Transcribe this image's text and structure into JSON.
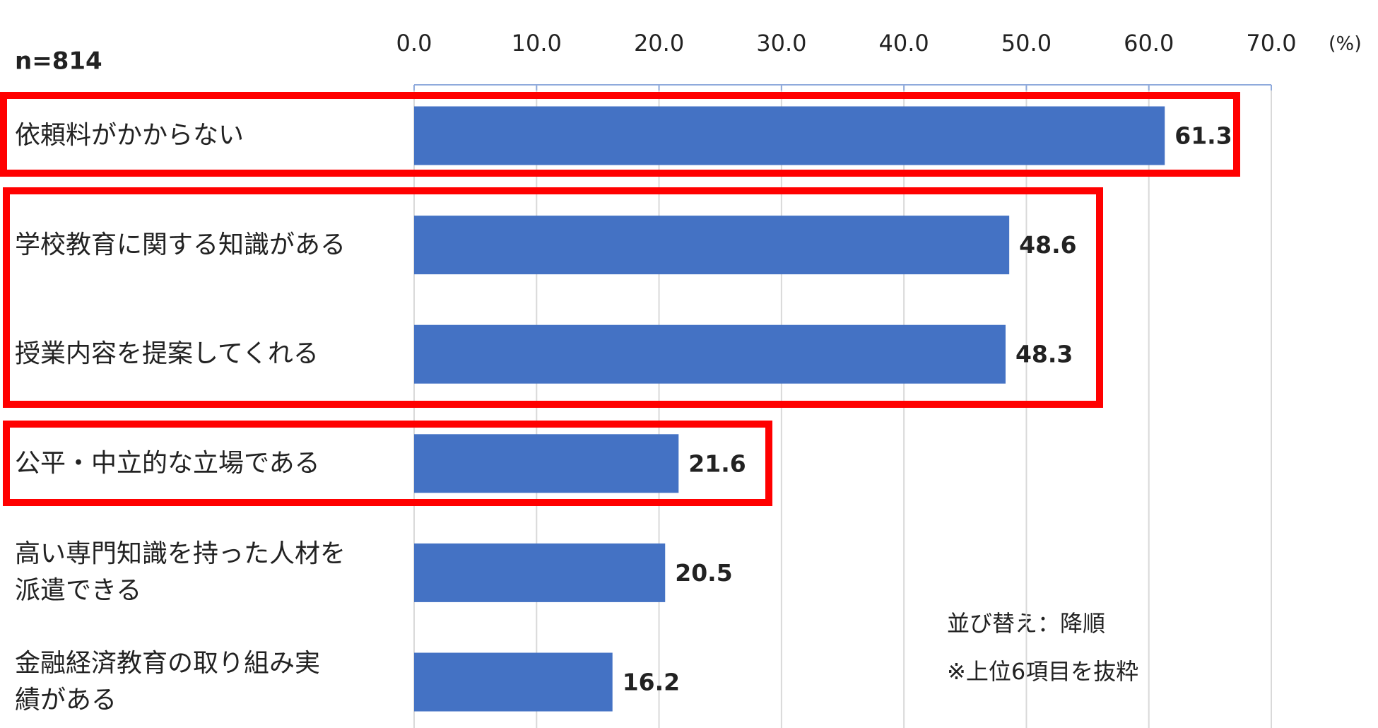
{
  "chart_data": {
    "type": "bar",
    "orientation": "horizontal",
    "sample_size": "n=814",
    "unit": "(%)",
    "notes": [
      "並び替え：降順",
      "※上位6項目を抜粋"
    ],
    "categories": [
      "依頼料がかからない",
      "学校教育に関する知識がある",
      "授業内容を提案してくれる",
      "公平・中立的な立場である",
      "高い専門知識を持った人材を\n派遣できる",
      "金融経済教育の取り組み実\n績がある"
    ],
    "values": [
      61.3,
      48.6,
      48.3,
      21.6,
      20.5,
      16.2
    ],
    "color": "#4472c4",
    "xlim": [
      0,
      70
    ],
    "xticks": [
      {
        "value": 0,
        "label": "0.0"
      },
      {
        "value": 10,
        "label": "10.0"
      },
      {
        "value": 20,
        "label": "20.0"
      },
      {
        "value": 30,
        "label": "30.0"
      },
      {
        "value": 40,
        "label": "40.0"
      },
      {
        "value": 50,
        "label": "50.0"
      },
      {
        "value": 60,
        "label": "60.0"
      },
      {
        "value": 70,
        "label": "70.0"
      }
    ],
    "grid": true
  }
}
